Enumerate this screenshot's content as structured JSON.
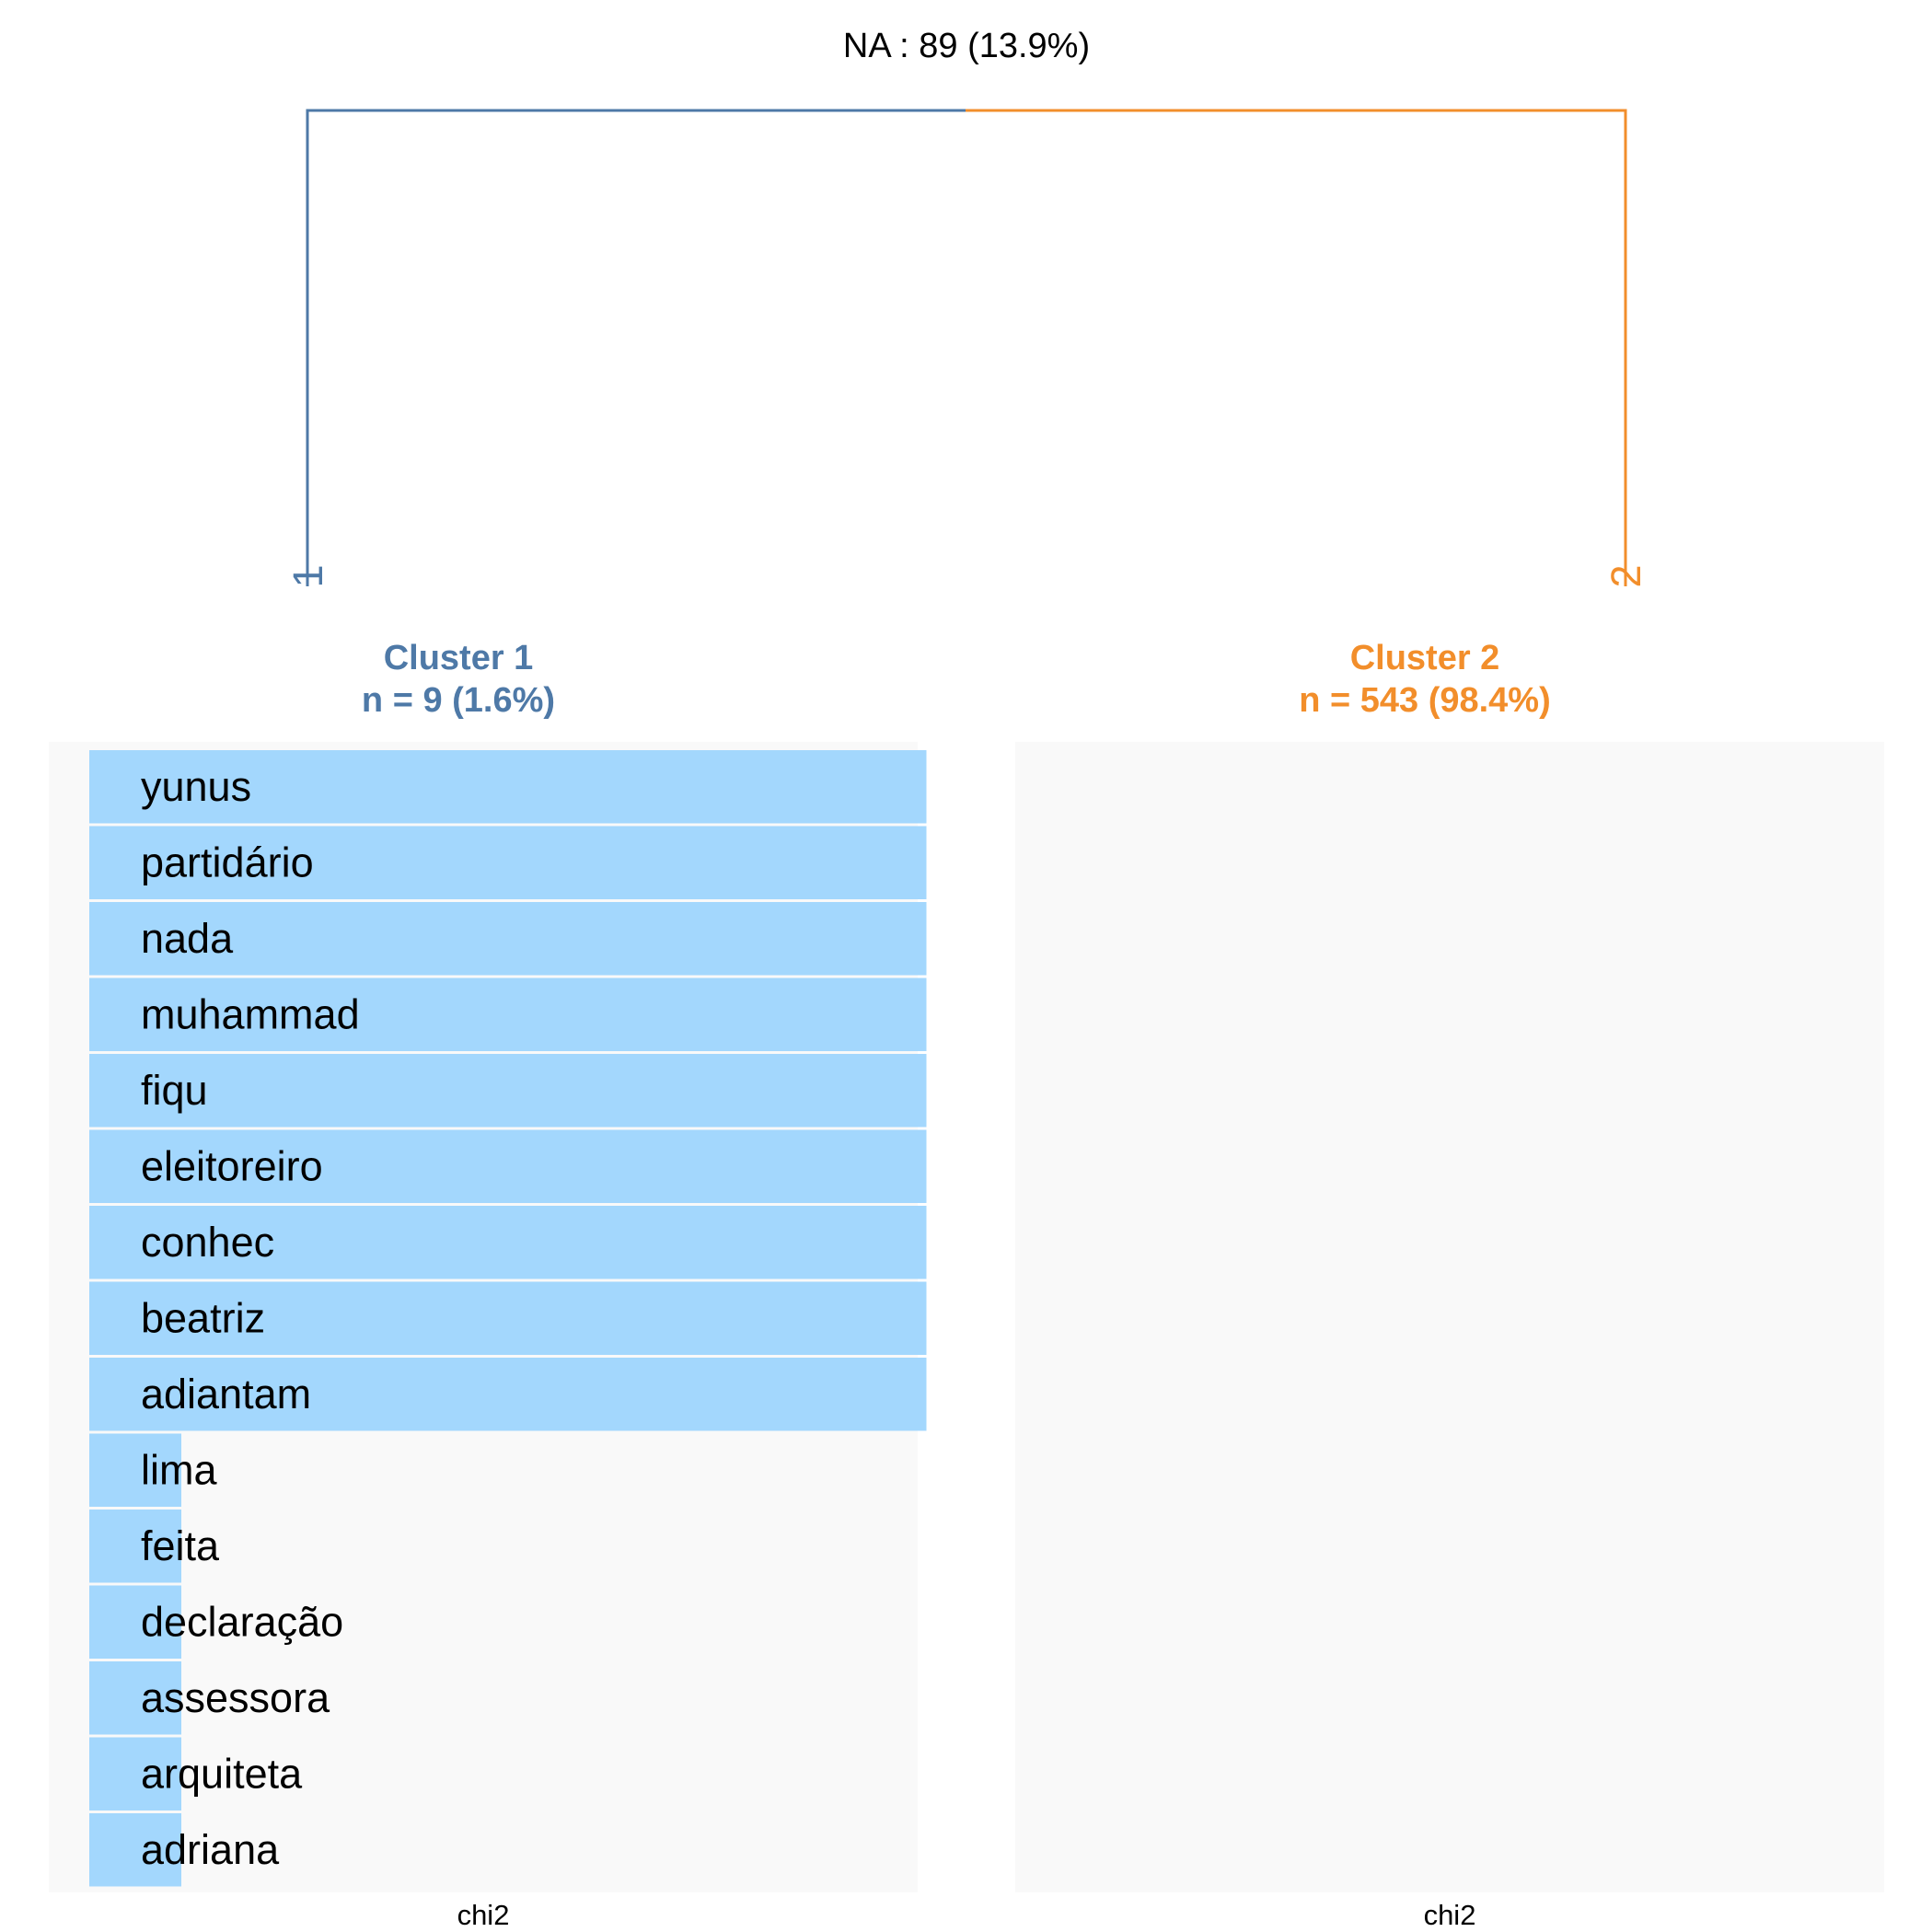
{
  "header": {
    "na_label": "NA : 89 (13.9%)"
  },
  "colors": {
    "cluster1": "#4e79a7",
    "cluster2": "#f28e2b",
    "bar": "#a3d7fd",
    "panel_bg": "#f9f9f9"
  },
  "dendrogram": {
    "leaves": [
      "1",
      "2"
    ]
  },
  "chart_data": {
    "type": "bar",
    "orientation": "horizontal",
    "panels": [
      {
        "title": "Cluster 1",
        "subtitle": "n = 9 (1.6%)",
        "xlabel": "chi2",
        "categories": [
          "yunus",
          "partidário",
          "nada",
          "muhammad",
          "fiqu",
          "eleitoreiro",
          "conhec",
          "beatriz",
          "adiantam",
          "lima",
          "feita",
          "declaração",
          "assessora",
          "arquiteta",
          "adriana"
        ],
        "values": [
          1.0,
          1.0,
          1.0,
          1.0,
          1.0,
          1.0,
          1.0,
          1.0,
          1.0,
          0.11,
          0.11,
          0.11,
          0.11,
          0.11,
          0.11
        ],
        "xlim": [
          0,
          1.05
        ]
      },
      {
        "title": "Cluster 2",
        "subtitle": "n = 543 (98.4%)",
        "xlabel": "chi2",
        "categories": [],
        "values": []
      }
    ]
  }
}
